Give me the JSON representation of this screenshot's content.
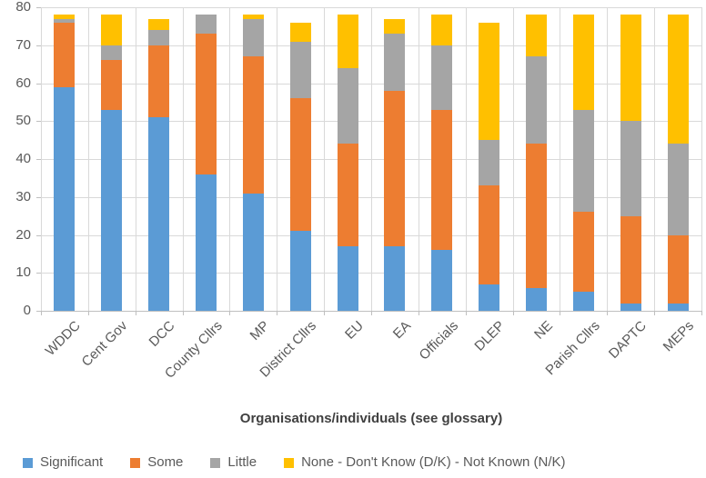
{
  "chart_data": {
    "type": "bar",
    "stacked": true,
    "title": "",
    "xlabel": "Organisations/individuals (see glossary)",
    "ylabel": "",
    "ylim": [
      0,
      80
    ],
    "ytick_step": 10,
    "grid": true,
    "legend_position": "bottom",
    "categories": [
      "WDDC",
      "Cent Gov",
      "DCC",
      "County Cllrs",
      "MP",
      "District Cllrs",
      "EU",
      "EA",
      "Officials",
      "DLEP",
      "NE",
      "Parish Cllrs",
      "DAPTC",
      "MEPs"
    ],
    "series": [
      {
        "name": "Significant",
        "color": "#5B9BD5",
        "values": [
          59,
          53,
          51,
          36,
          31,
          21,
          17,
          17,
          16,
          7,
          6,
          5,
          2,
          2
        ]
      },
      {
        "name": "Some",
        "color": "#ED7D31",
        "values": [
          17,
          13,
          19,
          37,
          36,
          35,
          27,
          41,
          37,
          26,
          38,
          21,
          23,
          18
        ]
      },
      {
        "name": "Little",
        "color": "#A5A5A5",
        "values": [
          1,
          4,
          4,
          5,
          10,
          15,
          20,
          15,
          17,
          12,
          23,
          27,
          25,
          24
        ]
      },
      {
        "name": "None - Don't Know (D/K) - Not Known (N/K)",
        "color": "#FFC000",
        "values": [
          1,
          8,
          3,
          0,
          1,
          5,
          14,
          4,
          8,
          31,
          11,
          25,
          28,
          34
        ]
      }
    ]
  },
  "colors": {
    "gridline": "#d9d9d9",
    "axis_line": "#bfbfbf",
    "tick_label": "#595959",
    "axis_title": "#404040",
    "background": "#ffffff"
  }
}
